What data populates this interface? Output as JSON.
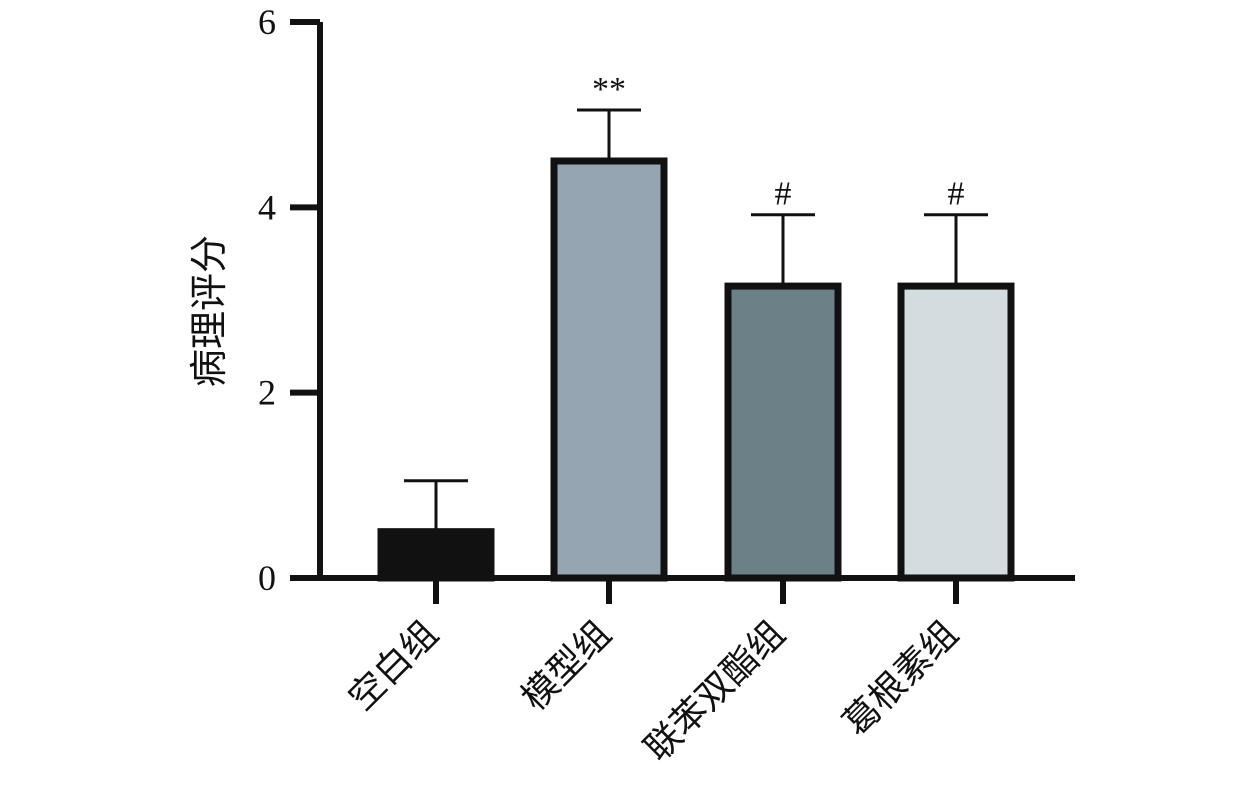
{
  "chart_data": {
    "type": "bar",
    "ylabel": "病理评分",
    "xlabel": "",
    "ylim": [
      0,
      6
    ],
    "yticks": [
      "0",
      "2",
      "4",
      "6"
    ],
    "categories": [
      "空白组",
      "模型组",
      "联苯双酯组",
      "葛根素组"
    ],
    "values": [
      0.5,
      4.5,
      3.15,
      3.15
    ],
    "errors": [
      0.55,
      0.55,
      0.77,
      0.77
    ],
    "significance": [
      "",
      "**",
      "#",
      "#"
    ],
    "colors": [
      "#111111",
      "#95a5b1",
      "#6c8088",
      "#d3dcde"
    ],
    "grid": false
  }
}
